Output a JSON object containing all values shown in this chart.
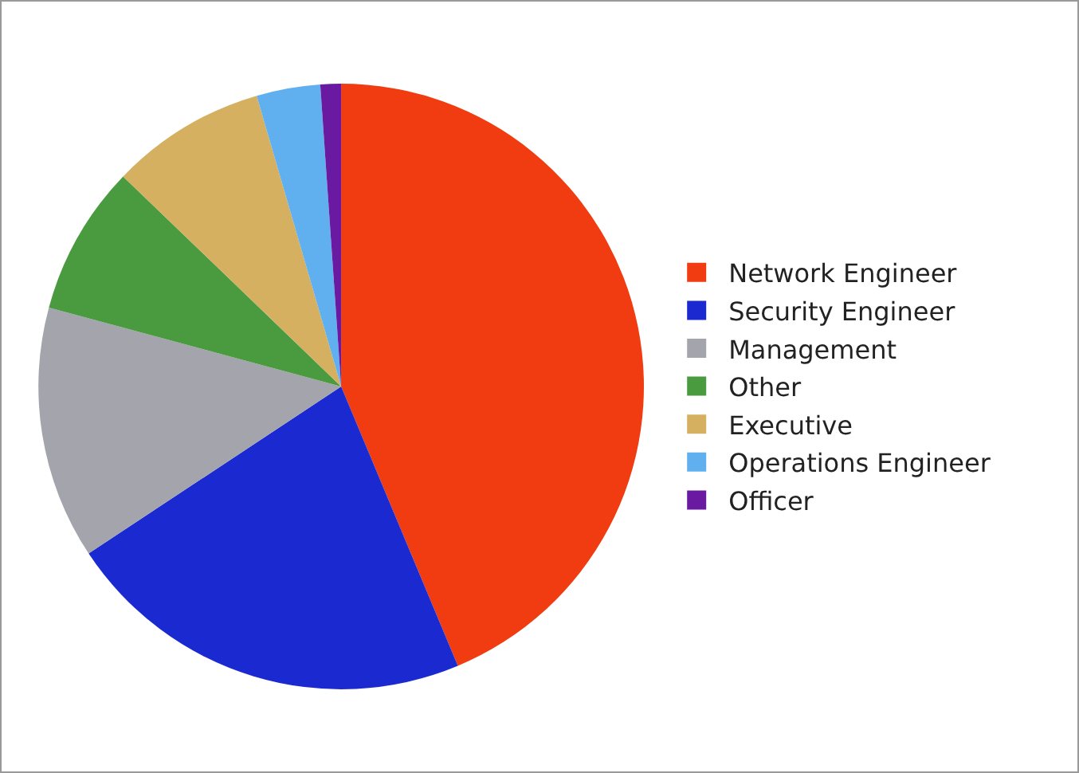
{
  "chart_data": {
    "type": "pie",
    "categories": [
      "Network Engineer",
      "Security Engineer",
      "Management",
      "Other",
      "Executive",
      "Operations Engineer",
      "Officer"
    ],
    "values": [
      43.7,
      22,
      13.5,
      8,
      8.3,
      3.4,
      1.1
    ],
    "colors": [
      "#f03c10",
      "#1a2ad0",
      "#a4a4ac",
      "#4a9a40",
      "#d4b060",
      "#60b0f0",
      "#6a1aa0"
    ],
    "legend": "right"
  }
}
